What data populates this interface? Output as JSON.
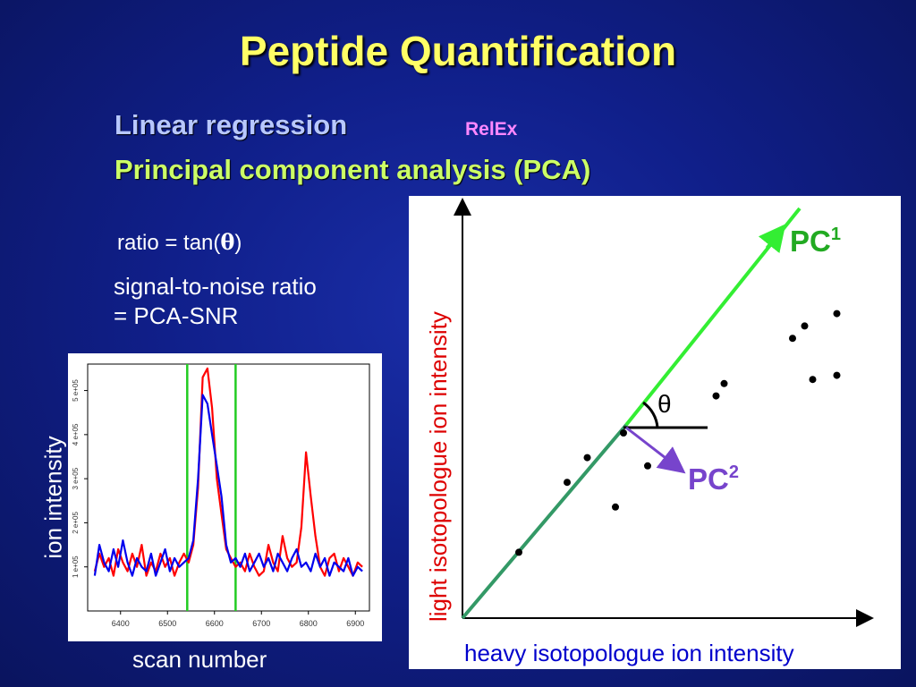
{
  "slide": {
    "title": "Peptide Quantification",
    "linreg": "Linear regression",
    "relex": "RelEx",
    "pca": "Principal component analysis (PCA)",
    "ratio_prefix": "ratio = tan(",
    "ratio_theta": "θ",
    "ratio_suffix": ")",
    "snr_line1": "signal-to-noise ratio",
    "snr_line2": "= PCA-SNR"
  },
  "left_chart": {
    "ylabel": "ion intensity",
    "xlabel": "scan number",
    "x_ticks": [
      "6400",
      "6500",
      "6600",
      "6700",
      "6800",
      "6900"
    ],
    "y_ticks": [
      "1 e+05",
      "2 e+05",
      "3 e+05",
      "4 e+05",
      "5 e+05"
    ]
  },
  "right_chart": {
    "ylabel": "light isotopologue ion intensity",
    "xlabel": "heavy isotopologue ion intensity",
    "pc1": "PC",
    "pc1_sup": "1",
    "pc2": "PC",
    "pc2_sup": "2",
    "theta": "θ"
  },
  "chart_data": [
    {
      "type": "line",
      "xlabel": "scan number",
      "ylabel": "ion intensity",
      "xlim": [
        6330,
        6930
      ],
      "ylim": [
        0,
        5.6
      ],
      "y_unit": "e+05",
      "vlines": [
        6542,
        6645
      ],
      "series": [
        {
          "color": "#ff0000",
          "x": [
            6345,
            6355,
            6365,
            6375,
            6385,
            6395,
            6405,
            6415,
            6425,
            6435,
            6445,
            6455,
            6465,
            6475,
            6485,
            6495,
            6505,
            6515,
            6525,
            6535,
            6545,
            6555,
            6565,
            6575,
            6585,
            6595,
            6605,
            6615,
            6625,
            6635,
            6645,
            6655,
            6665,
            6675,
            6685,
            6695,
            6705,
            6715,
            6725,
            6735,
            6745,
            6755,
            6765,
            6775,
            6785,
            6795,
            6805,
            6815,
            6825,
            6835,
            6845,
            6855,
            6865,
            6875,
            6885,
            6895,
            6905,
            6915
          ],
          "y": [
            0.9,
            1.3,
            1.0,
            1.2,
            0.8,
            1.4,
            1.1,
            0.9,
            1.3,
            1.0,
            1.5,
            0.8,
            1.1,
            0.9,
            1.3,
            1.0,
            1.2,
            0.8,
            1.1,
            1.3,
            1.1,
            1.5,
            2.8,
            5.3,
            5.5,
            4.6,
            3.0,
            2.2,
            1.4,
            1.2,
            1.0,
            1.1,
            0.9,
            1.3,
            1.0,
            0.8,
            0.9,
            1.5,
            1.1,
            0.9,
            1.7,
            1.2,
            1.0,
            1.1,
            1.9,
            3.6,
            2.6,
            1.7,
            1.0,
            0.8,
            1.2,
            1.3,
            0.9,
            1.2,
            1.0,
            0.8,
            1.1,
            1.0
          ]
        },
        {
          "color": "#0000ee",
          "x": [
            6345,
            6355,
            6365,
            6375,
            6385,
            6395,
            6405,
            6415,
            6425,
            6435,
            6445,
            6455,
            6465,
            6475,
            6485,
            6495,
            6505,
            6515,
            6525,
            6535,
            6545,
            6555,
            6565,
            6575,
            6585,
            6595,
            6605,
            6615,
            6625,
            6635,
            6645,
            6655,
            6665,
            6675,
            6685,
            6695,
            6705,
            6715,
            6725,
            6735,
            6745,
            6755,
            6765,
            6775,
            6785,
            6795,
            6805,
            6815,
            6825,
            6835,
            6845,
            6855,
            6865,
            6875,
            6885,
            6895,
            6905,
            6915
          ],
          "y": [
            0.8,
            1.5,
            1.1,
            0.9,
            1.4,
            1.0,
            1.6,
            1.1,
            0.8,
            1.2,
            1.0,
            0.9,
            1.3,
            0.8,
            1.1,
            1.4,
            0.9,
            1.2,
            1.0,
            1.1,
            1.2,
            1.6,
            3.0,
            4.9,
            4.7,
            4.0,
            3.3,
            2.6,
            1.5,
            1.1,
            1.2,
            1.0,
            1.3,
            0.9,
            1.1,
            1.3,
            1.0,
            1.2,
            0.9,
            1.3,
            1.1,
            0.9,
            1.2,
            1.4,
            1.0,
            1.1,
            0.9,
            1.3,
            1.0,
            1.2,
            0.8,
            1.1,
            1.0,
            0.9,
            1.2,
            0.8,
            1.0,
            0.9
          ]
        }
      ]
    },
    {
      "type": "scatter",
      "xlabel": "heavy isotopologue ion intensity",
      "ylabel": "light isotopologue ion intensity",
      "points": [
        [
          0.93,
          0.74
        ],
        [
          0.85,
          0.71
        ],
        [
          0.82,
          0.68
        ],
        [
          0.93,
          0.59
        ],
        [
          0.65,
          0.57
        ],
        [
          0.63,
          0.54
        ],
        [
          0.87,
          0.58
        ],
        [
          0.4,
          0.45
        ],
        [
          0.31,
          0.39
        ],
        [
          0.46,
          0.37
        ],
        [
          0.26,
          0.33
        ],
        [
          0.38,
          0.27
        ],
        [
          0.14,
          0.16
        ]
      ]
    }
  ]
}
